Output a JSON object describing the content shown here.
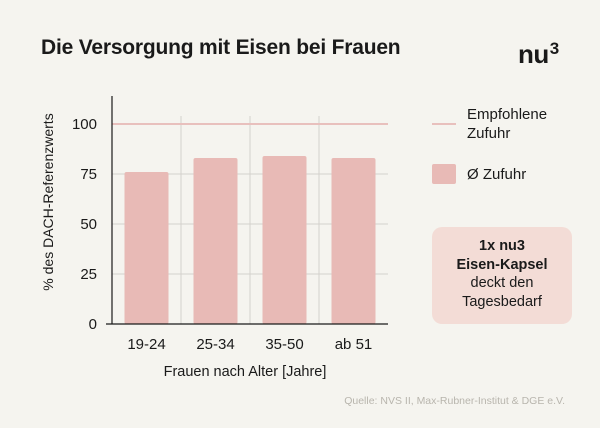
{
  "header": {
    "title": "Die Versorgung mit Eisen bei Frauen",
    "logo_text": "nu",
    "logo_sup": "3"
  },
  "legend": {
    "recommended_label": "Empfohlene Zufuhr",
    "intake_label": "Ø Zufuhr"
  },
  "callout": {
    "line1": "1x nu3",
    "line2": "Eisen-Kapsel",
    "line3": "deckt den",
    "line4": "Tagesbedarf"
  },
  "source": "Quelle: NVS II, Max-Rubner-Institut & DGE e.V.",
  "colors": {
    "background": "#f5f4ef",
    "bar": "#e8bab6",
    "reference_line": "#e8c0bd",
    "grid": "#d4d2cc",
    "callout_bg": "#f3dcd6"
  },
  "chart_data": {
    "type": "bar",
    "title": "Die Versorgung mit Eisen bei Frauen",
    "xlabel": "Frauen nach Alter [Jahre]",
    "ylabel": "% des DACH-Referenzwerts",
    "categories": [
      "19-24",
      "25-34",
      "35-50",
      "ab 51"
    ],
    "series": [
      {
        "name": "Ø Zufuhr",
        "values": [
          76,
          83,
          84,
          83
        ]
      }
    ],
    "reference_line": {
      "name": "Empfohlene Zufuhr",
      "value": 100
    },
    "yticks": [
      "0",
      "25",
      "50",
      "75",
      "100"
    ],
    "ylim": [
      0,
      112
    ],
    "grid": true
  }
}
